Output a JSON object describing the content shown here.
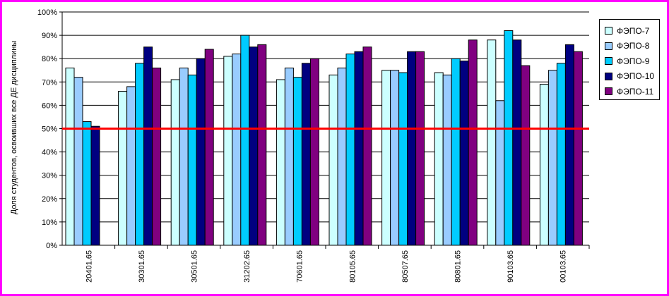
{
  "chart_data": {
    "type": "bar",
    "ylabel": "Доля студентов, освоивших все ДЕ дисциплины",
    "ylim": [
      0,
      100
    ],
    "yticks": [
      "0%",
      "10%",
      "20%",
      "30%",
      "40%",
      "50%",
      "60%",
      "70%",
      "80%",
      "90%",
      "100%"
    ],
    "categories": [
      "20401.65",
      "30301.65",
      "30501.65",
      "31202.65",
      "70601.65",
      "80105.65",
      "80507.65",
      "80801.65",
      "90103.65",
      "00103.65"
    ],
    "series": [
      {
        "name": "ФЭПО-7",
        "color": "#ccffff",
        "values": [
          76,
          66,
          71,
          81,
          71,
          73,
          75,
          74,
          88,
          69
        ]
      },
      {
        "name": "ФЭПО-8",
        "color": "#99ccff",
        "values": [
          72,
          68,
          76,
          82,
          76,
          76,
          75,
          73,
          62,
          75
        ]
      },
      {
        "name": "ФЭПО-9",
        "color": "#00ccff",
        "values": [
          53,
          78,
          73,
          90,
          72,
          82,
          74,
          80,
          92,
          78
        ]
      },
      {
        "name": "ФЭПО-10",
        "color": "#000080",
        "values": [
          51,
          85,
          80,
          85,
          78,
          83,
          83,
          79,
          88,
          86
        ]
      },
      {
        "name": "ФЭПО-11",
        "color": "#800080",
        "values": [
          null,
          76,
          84,
          86,
          80,
          85,
          83,
          88,
          77,
          83
        ]
      }
    ],
    "reference_line": {
      "value": 50,
      "color": "#ff0000"
    },
    "grid": "horizontal",
    "legend": "right"
  }
}
